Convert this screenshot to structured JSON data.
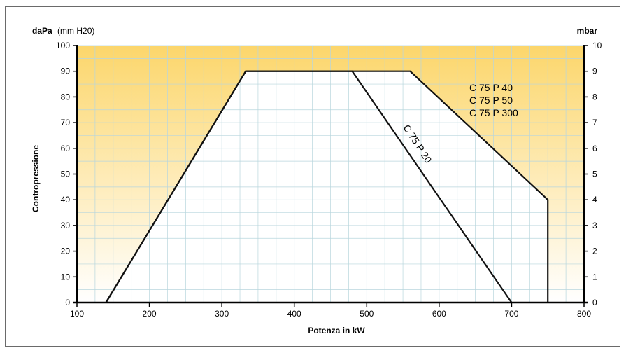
{
  "chart_data": {
    "type": "line",
    "x_axis": {
      "label": "Potenza in kW",
      "min": 100,
      "max": 800,
      "ticks": [
        100,
        200,
        300,
        400,
        500,
        600,
        700,
        800
      ]
    },
    "y_axis_left": {
      "label": "Contropressione",
      "unit": "daPa",
      "unit_note": "(mm H20)",
      "min": 0,
      "max": 100,
      "ticks": [
        0,
        10,
        20,
        30,
        40,
        50,
        60,
        70,
        80,
        90,
        100
      ]
    },
    "y_axis_right": {
      "unit": "mbar",
      "min": 0,
      "max": 10,
      "ticks": [
        0,
        1,
        2,
        3,
        4,
        5,
        6,
        7,
        8,
        9,
        10
      ]
    },
    "grid": true,
    "series": [
      {
        "name": "C 75 P 20",
        "points": [
          [
            140,
            0
          ],
          [
            333,
            90
          ],
          [
            480,
            90
          ],
          [
            700,
            0
          ]
        ]
      },
      {
        "names": [
          "C 75 P 40",
          "C 75 P 50",
          "C 75 P 300"
        ],
        "points": [
          [
            140,
            0
          ],
          [
            333,
            90
          ],
          [
            560,
            90
          ],
          [
            750,
            40
          ],
          [
            750,
            0
          ]
        ]
      }
    ],
    "colors": {
      "background_top": "#fcd66b",
      "background_bottom": "#ffffff",
      "plot_area": "#ffffff",
      "grid": "#b8d6dd",
      "curve": "#111111",
      "axis": "#000000"
    }
  }
}
